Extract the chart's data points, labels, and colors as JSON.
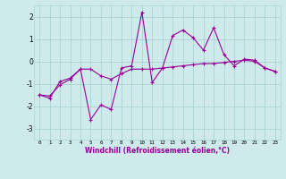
{
  "xlabel": "Windchill (Refroidissement éolien,°C)",
  "background_color": "#ceeaea",
  "grid_color": "#aad4d4",
  "line_color": "#990099",
  "x_line1": [
    0,
    1,
    2,
    3,
    4,
    5,
    6,
    7,
    8,
    9,
    10,
    11,
    12,
    13,
    14,
    15,
    16,
    17,
    18,
    19,
    20,
    21,
    22,
    23
  ],
  "y_line1": [
    -1.5,
    -1.65,
    -0.9,
    -0.75,
    -0.35,
    -2.6,
    -1.95,
    -2.15,
    -0.3,
    -0.2,
    2.2,
    -0.95,
    -0.3,
    1.15,
    1.4,
    1.05,
    0.5,
    1.5,
    0.3,
    -0.2,
    0.1,
    0.05,
    -0.3,
    -0.45
  ],
  "x_line2": [
    0,
    1,
    2,
    3,
    4,
    5,
    6,
    7,
    8,
    9,
    10,
    11,
    12,
    13,
    14,
    15,
    16,
    17,
    18,
    19,
    20,
    21,
    22,
    23
  ],
  "y_line2": [
    -1.5,
    -1.55,
    -1.05,
    -0.8,
    -0.35,
    -0.35,
    -0.65,
    -0.8,
    -0.55,
    -0.35,
    -0.35,
    -0.35,
    -0.3,
    -0.25,
    -0.2,
    -0.15,
    -0.1,
    -0.1,
    -0.05,
    0.0,
    0.05,
    0.0,
    -0.3,
    -0.45
  ],
  "xlim": [
    -0.5,
    23.5
  ],
  "ylim": [
    -3.5,
    2.5
  ],
  "yticks": [
    -3,
    -2,
    -1,
    0,
    1,
    2
  ],
  "xticks": [
    0,
    1,
    2,
    3,
    4,
    5,
    6,
    7,
    8,
    9,
    10,
    11,
    12,
    13,
    14,
    15,
    16,
    17,
    18,
    19,
    20,
    21,
    22,
    23
  ]
}
